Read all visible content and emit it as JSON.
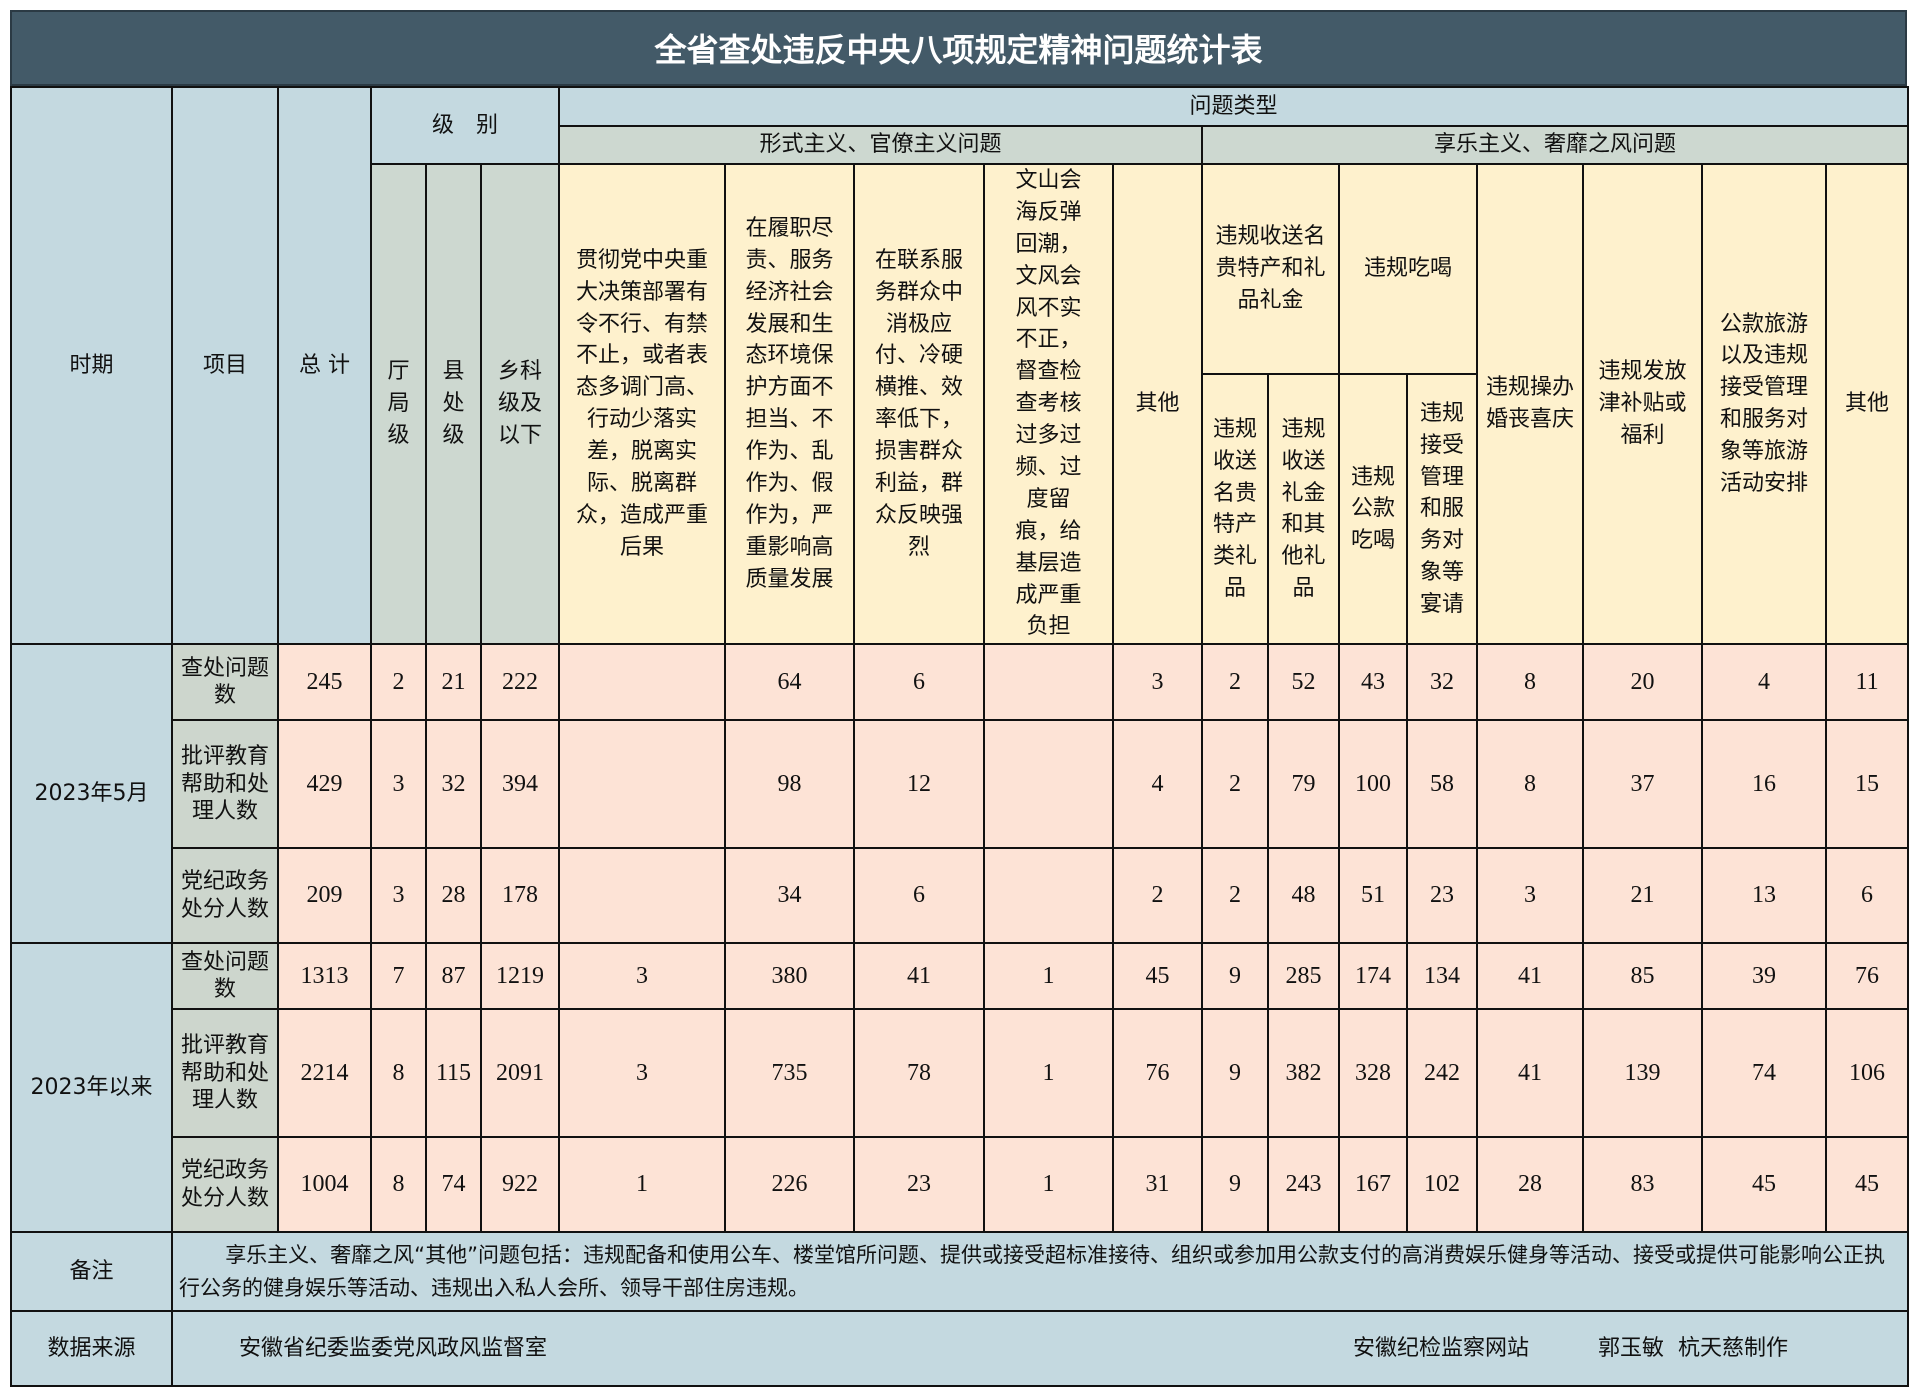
{
  "title": "全省查处违反中央八项规定精神问题统计表",
  "header": {
    "period": "时期",
    "item": "项目",
    "total": "总 计",
    "level": "级　别",
    "levels": [
      "厅局级",
      "县处级",
      "乡科级及以下"
    ],
    "problem_type": "问题类型",
    "formalism": "形式主义、官僚主义问题",
    "hedonism": "享乐主义、奢靡之风问题",
    "formalism_cols": [
      "贯彻党中央重大决策部署有令不行、有禁不止，或者表态多调门高、行动少落实差，脱离实际、脱离群众，造成严重后果",
      "在履职尽责、服务经济社会发展和生态环境保护方面不担当、不作为、乱作为、假作为，严重影响高质量发展",
      "在联系服务群众中消极应付、冷硬横推、效率低下，损害群众利益，群众反映强烈",
      "文山会海反弹回潮，文风会风不实不正，督查检查考核过多过频、过度留痕，给基层造成严重负担",
      "其他"
    ],
    "gifts_group": "违规收送名贵特产和礼品礼金",
    "gifts_cols": [
      "违规收送名贵特产类礼品",
      "违规收送礼金和其他礼品"
    ],
    "dining_group": "违规吃喝",
    "dining_cols": [
      "违规公款吃喝",
      "违规接受管理和服务对象等宴请"
    ],
    "hedonism_cols": [
      "违规操办婚丧喜庆",
      "违规发放津补贴或福利",
      "公款旅游以及违规接受管理和服务对象等旅游活动安排",
      "其他"
    ]
  },
  "groups": [
    {
      "period": "2023年5月",
      "rows": [
        {
          "item": "查处问题数",
          "values": [
            "245",
            "2",
            "21",
            "222",
            "",
            "64",
            "6",
            "",
            "3",
            "2",
            "52",
            "43",
            "32",
            "8",
            "20",
            "4",
            "11"
          ]
        },
        {
          "item": "批评教育帮助和处理人数",
          "values": [
            "429",
            "3",
            "32",
            "394",
            "",
            "98",
            "12",
            "",
            "4",
            "2",
            "79",
            "100",
            "58",
            "8",
            "37",
            "16",
            "15"
          ]
        },
        {
          "item": "党纪政务处分人数",
          "values": [
            "209",
            "3",
            "28",
            "178",
            "",
            "34",
            "6",
            "",
            "2",
            "2",
            "48",
            "51",
            "23",
            "3",
            "21",
            "13",
            "6"
          ]
        }
      ]
    },
    {
      "period": "2023年以来",
      "rows": [
        {
          "item": "查处问题数",
          "values": [
            "1313",
            "7",
            "87",
            "1219",
            "3",
            "380",
            "41",
            "1",
            "45",
            "9",
            "285",
            "174",
            "134",
            "41",
            "85",
            "39",
            "76"
          ]
        },
        {
          "item": "批评教育帮助和处理人数",
          "values": [
            "2214",
            "8",
            "115",
            "2091",
            "3",
            "735",
            "78",
            "1",
            "76",
            "9",
            "382",
            "328",
            "242",
            "41",
            "139",
            "74",
            "106"
          ]
        },
        {
          "item": "党纪政务处分人数",
          "values": [
            "1004",
            "8",
            "74",
            "922",
            "1",
            "226",
            "23",
            "1",
            "31",
            "9",
            "243",
            "167",
            "102",
            "28",
            "83",
            "45",
            "45"
          ]
        }
      ]
    }
  ],
  "footer": {
    "note_label": "备注",
    "note_text": "享乐主义、奢靡之风“其他”问题包括：违规配备和使用公车、楼堂馆所问题、提供或接受超标准接待、组织或参加用公款支付的高消费娱乐健身等活动、接受或提供可能影响公正执行公务的健身娱乐等活动、违规出入私人会所、领导干部住房违规。",
    "source_label": "数据来源",
    "source_text": "安徽省纪委监委党风政风监督室",
    "site": "安徽纪检监察网站",
    "authors": "郭玉敏  杭天慈制作"
  },
  "colors": {
    "title_bg": "#435a68",
    "header_blue": "#c4d9e0",
    "header_grey": "#cdd8d0",
    "header_yellow": "#fef1cd",
    "data_pink": "#fde3d6"
  }
}
